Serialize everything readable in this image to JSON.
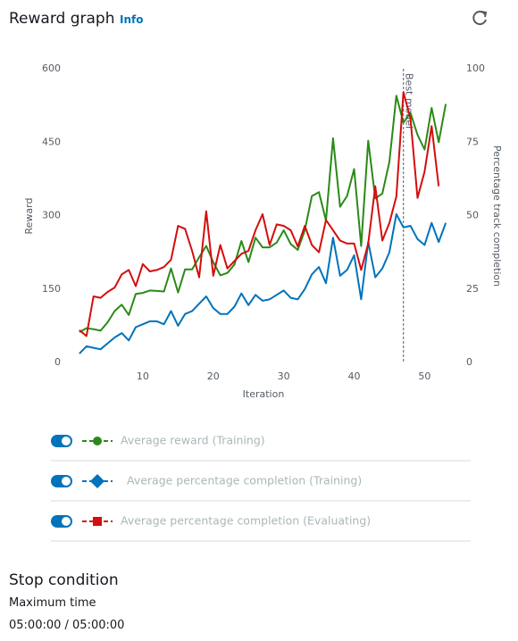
{
  "header": {
    "title": "Reward graph",
    "info": "Info"
  },
  "chart_data": {
    "type": "line",
    "x_label": "Iteration",
    "y_label": "Reward",
    "y2_label": "Percentage track completion",
    "x": [
      1,
      2,
      3,
      4,
      5,
      6,
      7,
      8,
      9,
      10,
      11,
      12,
      13,
      14,
      15,
      16,
      17,
      18,
      19,
      20,
      21,
      22,
      23,
      24,
      25,
      26,
      27,
      28,
      29,
      30,
      31,
      32,
      33,
      34,
      35,
      36,
      37,
      38,
      39,
      40,
      41,
      42,
      43,
      44,
      45,
      46,
      47,
      48,
      49,
      50,
      51,
      52,
      53
    ],
    "xlim": [
      0.5,
      53.5
    ],
    "xticks": [
      10,
      20,
      30,
      40,
      50
    ],
    "ylim": [
      0,
      600
    ],
    "yticks": [
      0,
      150,
      300,
      450,
      600
    ],
    "y2lim": [
      0,
      100
    ],
    "y2ticks": [
      0,
      25,
      50,
      75,
      100
    ],
    "grid": false,
    "annotation": {
      "text": "Best model",
      "x": 47
    },
    "series": [
      {
        "name": "Average reward (Training)",
        "color": "#2a8a17",
        "axis": "y",
        "marker": "circle",
        "values": [
          62,
          70,
          68,
          65,
          82,
          105,
          118,
          97,
          140,
          142,
          147,
          146,
          145,
          192,
          143,
          190,
          190,
          215,
          238,
          205,
          178,
          183,
          200,
          248,
          205,
          255,
          235,
          235,
          245,
          270,
          242,
          230,
          270,
          340,
          348,
          290,
          458,
          318,
          340,
          395,
          238,
          453,
          335,
          345,
          410,
          545,
          490,
          510,
          465,
          435,
          520,
          450,
          528
        ]
      },
      {
        "name": "Average percentage completion (Training)",
        "color": "#0073bb",
        "axis": "y2",
        "marker": "diamond",
        "values": [
          3,
          5.5,
          5,
          4.5,
          6.5,
          8.5,
          10,
          7.5,
          12,
          13,
          14,
          14,
          13,
          17.5,
          12.5,
          16.5,
          17.5,
          20,
          22.5,
          18.5,
          16.5,
          16.5,
          19,
          23.5,
          19.5,
          23,
          21,
          21.5,
          23,
          24.5,
          22,
          21.5,
          25,
          30,
          32.5,
          27,
          42.5,
          29.5,
          31.5,
          36.5,
          21.5,
          41,
          29,
          32,
          37.5,
          50.5,
          46,
          46.5,
          42,
          40,
          47.5,
          41,
          47.5
        ]
      },
      {
        "name": "Average percentage completion (Evaluating)",
        "color": "#d40d0d",
        "axis": "y2",
        "marker": "square",
        "values": [
          11,
          9,
          22.5,
          22,
          24,
          25.5,
          30,
          31.5,
          26,
          33.5,
          31,
          31.5,
          32.5,
          35,
          46.5,
          45.5,
          38,
          29,
          51.5,
          29.5,
          40,
          32,
          34.5,
          37,
          38,
          45,
          50.5,
          40,
          47,
          46.5,
          45,
          39.5,
          46.5,
          40,
          37.5,
          48.5,
          45,
          41.5,
          40.5,
          40.5,
          31.5,
          40.5,
          60,
          41.5,
          47.5,
          56.5,
          92,
          83,
          56,
          65,
          80.5,
          60,
          null
        ]
      }
    ]
  },
  "stop_condition": {
    "title": "Stop condition",
    "label": "Maximum time",
    "value": "05:00:00 / 05:00:00"
  }
}
